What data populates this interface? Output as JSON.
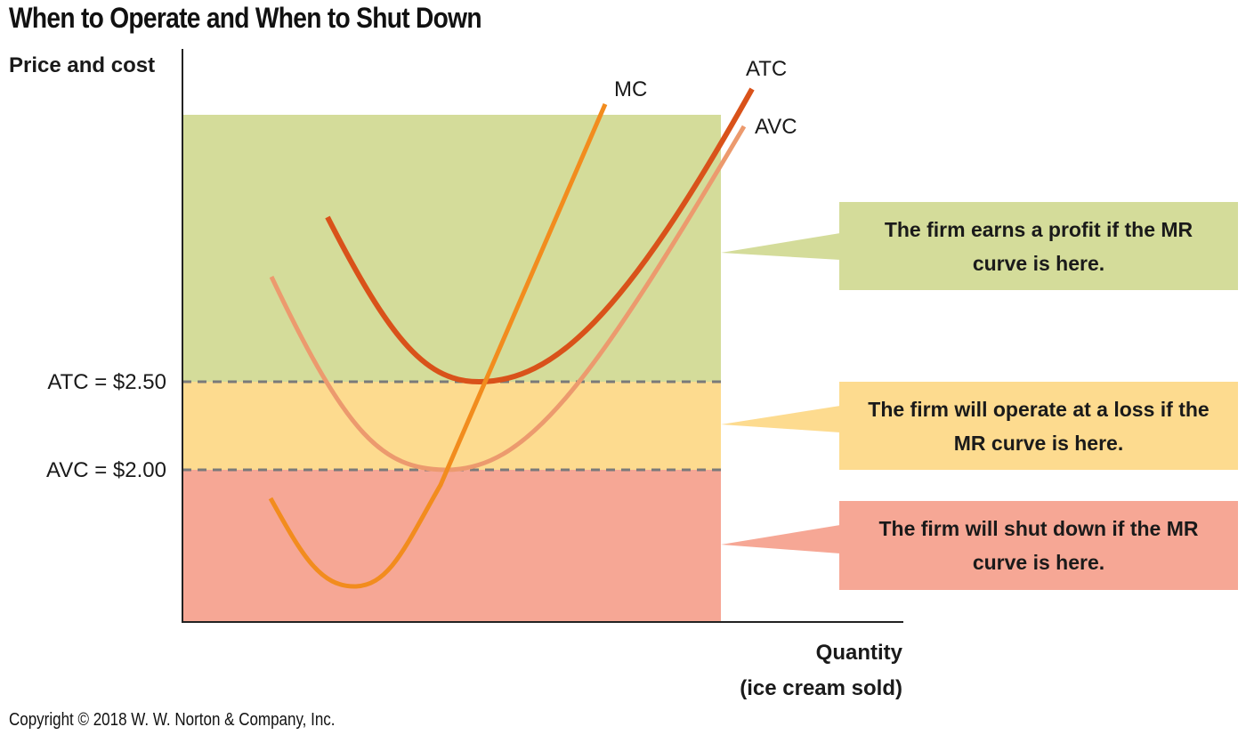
{
  "title": "When to Operate and When to Shut Down",
  "copyright": "Copyright © 2018 W. W. Norton & Company, Inc.",
  "colors": {
    "profit_zone": "#d4dc9a",
    "loss_zone": "#fddb8f",
    "shutdown_zone": "#f6a795",
    "mc_curve": "#f28c1e",
    "atc_curve": "#d9521a",
    "avc_curve": "#ec9a6e",
    "dashed_line": "#7a7a7a",
    "axis": "#222222"
  },
  "callouts": {
    "profit": "The firm earns a profit if the MR curve is here.",
    "loss": "The firm will operate at a loss if the MR curve is here.",
    "shutdown": "The firm will shut down if the MR curve is here."
  },
  "chart_data": {
    "type": "line",
    "ylabel": "Price and cost",
    "xlabel": [
      "Quantity",
      "(ice cream sold)"
    ],
    "y_ticks": [
      {
        "label": "ATC = $2.50",
        "value": 2.5
      },
      {
        "label": "AVC = $2.00",
        "value": 2.0
      }
    ],
    "zones": [
      {
        "name": "profit",
        "from": 2.5,
        "to": null
      },
      {
        "name": "loss",
        "from": 2.0,
        "to": 2.5
      },
      {
        "name": "shutdown",
        "from": null,
        "to": 2.0
      }
    ],
    "series": [
      {
        "name": "MC",
        "key": "mc_curve"
      },
      {
        "name": "ATC",
        "key": "atc_curve",
        "minimum": 2.5
      },
      {
        "name": "AVC",
        "key": "avc_curve",
        "minimum": 2.0
      }
    ]
  }
}
